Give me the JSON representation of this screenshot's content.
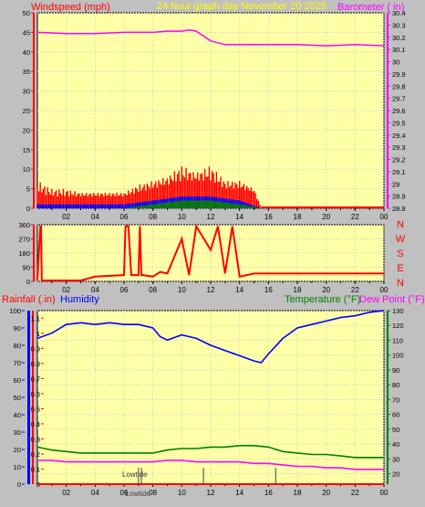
{
  "header": {
    "title": "24 hour graph day   November 20 2025",
    "left_label": "Windspeed (mph)",
    "right_label": "Barometer ( in)"
  },
  "direction_panel": {
    "compass_labels": [
      "N",
      "W",
      "S",
      "E",
      "N"
    ]
  },
  "bottom_header": {
    "rainfall_label": "Rainfall (.in)",
    "humidity_label": "Humidity",
    "temperature_label": "Temperature (°F)",
    "dewpoint_label": "Dew Point (°F)"
  },
  "colors": {
    "plot_bg": "#ffffa8",
    "wind_gust": "#ff0000",
    "wind_avg": "#0000ff",
    "wind_low": "#008000",
    "barometer": "#ff00ff",
    "humidity": "#0000ff",
    "temperature": "#008000",
    "dewpoint": "#ff00ff",
    "direction": "#ff0000",
    "rain": "#ff0000"
  },
  "chart_data": [
    {
      "type": "line",
      "x_ticks": [
        "02",
        "04",
        "06",
        "08",
        "10",
        "12",
        "14",
        "16",
        "18",
        "20",
        "22",
        "00"
      ],
      "y_left_ticks": [
        "0",
        "5",
        "10",
        "15",
        "20",
        "25",
        "30",
        "35",
        "40",
        "45",
        "50"
      ],
      "y_left_lim": [
        0,
        50
      ],
      "y_right_ticks": [
        "28.8",
        "28.9",
        "29",
        "29.1",
        "29.2",
        "29.3",
        "29.4",
        "29.5",
        "29.6",
        "29.7",
        "29.8",
        "29.9",
        "30",
        "30.1",
        "30.2",
        "30.3",
        "30.4"
      ],
      "y_right_lim": [
        28.8,
        30.4
      ],
      "series": [
        {
          "name": "Barometer",
          "hours": [
            0,
            2,
            4,
            6,
            8,
            9,
            10,
            10.5,
            11,
            12,
            13,
            14,
            15,
            16,
            18,
            20,
            22,
            24
          ],
          "values": [
            30.24,
            30.23,
            30.23,
            30.24,
            30.24,
            30.25,
            30.25,
            30.26,
            30.25,
            30.17,
            30.14,
            30.14,
            30.14,
            30.14,
            30.14,
            30.13,
            30.14,
            30.13
          ]
        },
        {
          "name": "Windspeed gust",
          "hours": [
            0,
            1,
            2,
            3,
            4,
            5,
            6,
            7,
            8,
            9,
            10,
            11,
            12,
            13,
            14,
            15,
            15.5,
            16,
            18,
            20,
            22,
            24
          ],
          "values": [
            4,
            3,
            3,
            3,
            3,
            3,
            3,
            4,
            5,
            6,
            7,
            7,
            7,
            5,
            5,
            4,
            0,
            0,
            0,
            0,
            0,
            0
          ],
          "max_values": [
            7,
            5,
            5,
            4,
            4,
            4,
            4,
            6,
            7,
            8,
            11,
            9,
            11,
            7,
            7,
            5,
            0,
            0,
            0,
            0,
            0,
            0
          ]
        },
        {
          "name": "Windspeed average",
          "hours": [
            0,
            2,
            4,
            6,
            8,
            10,
            12,
            14,
            15.5,
            16,
            24
          ],
          "values": [
            1,
            1,
            1,
            1,
            2,
            3,
            3,
            2,
            0,
            0,
            0
          ]
        },
        {
          "name": "Windspeed low",
          "hours": [
            0,
            2,
            4,
            6,
            8,
            10,
            12,
            14,
            15.5,
            16,
            24
          ],
          "values": [
            0,
            0,
            0,
            0,
            1,
            2,
            2,
            1,
            0,
            0,
            0
          ]
        }
      ]
    },
    {
      "type": "line",
      "x_ticks": [
        "02",
        "04",
        "06",
        "08",
        "10",
        "12",
        "14",
        "16",
        "18",
        "20",
        "22",
        "00"
      ],
      "y_ticks": [
        "0",
        "90",
        "180",
        "270",
        "360"
      ],
      "ylim": [
        0,
        360
      ],
      "series": [
        {
          "name": "Wind direction",
          "hours": [
            0,
            0.2,
            0.25,
            0.3,
            0.5,
            3,
            4,
            6,
            6.1,
            6.3,
            6.5,
            7,
            7.1,
            7.2,
            7.3,
            8,
            8.5,
            9,
            10,
            10.5,
            11,
            12,
            12.5,
            13,
            13.5,
            14,
            15,
            15.5,
            16,
            18,
            20,
            22,
            24
          ],
          "values": [
            5,
            350,
            350,
            5,
            5,
            5,
            30,
            40,
            350,
            350,
            40,
            40,
            350,
            40,
            40,
            30,
            60,
            50,
            270,
            40,
            350,
            200,
            350,
            50,
            350,
            30,
            50,
            50,
            50,
            50,
            50,
            50,
            50
          ]
        }
      ]
    },
    {
      "type": "line",
      "x_ticks": [
        "02",
        "04",
        "06",
        "08",
        "10",
        "12",
        "14",
        "16",
        "18",
        "20",
        "22",
        "00"
      ],
      "y_rain_ticks": [
        "0",
        "0.1",
        "0.2",
        "0.3",
        "0.4",
        "0.5",
        "0.6",
        "0.7",
        "0.8",
        "0.9",
        "1",
        "1.1"
      ],
      "y_rain_lim": [
        0,
        1.15
      ],
      "y_humidity_ticks": [
        "0",
        "10",
        "20",
        "30",
        "40",
        "50",
        "60",
        "70",
        "80",
        "90",
        "100"
      ],
      "y_humidity_lim": [
        0,
        100
      ],
      "y_temp_ticks": [
        "20",
        "30",
        "40",
        "50",
        "60",
        "70",
        "80",
        "90",
        "100",
        "110",
        "120",
        "130"
      ],
      "y_temp_lim": [
        13,
        130
      ],
      "annotations": [
        {
          "label": "Lowtide",
          "hour": 7
        },
        {
          "label": "Lowtide",
          "hour": 7.2
        },
        {
          "label": "",
          "hour": 11.5
        },
        {
          "label": "",
          "hour": 16.5
        }
      ],
      "series": [
        {
          "name": "Humidity",
          "hours": [
            0,
            1,
            2,
            3,
            4,
            5,
            6,
            7,
            8,
            8.5,
            9,
            10,
            11,
            12,
            13,
            14,
            15,
            15.5,
            16,
            17,
            18,
            19,
            20,
            21,
            22,
            23,
            24
          ],
          "values": [
            84,
            87,
            92,
            93,
            92,
            93,
            92,
            92,
            90,
            85,
            83,
            86,
            84,
            80,
            77,
            74,
            71,
            70,
            75,
            84,
            90,
            92,
            94,
            96,
            97,
            99,
            100
          ]
        },
        {
          "name": "Temperature",
          "hours": [
            0,
            1,
            2,
            3,
            4,
            5,
            6,
            7,
            8,
            9,
            10,
            11,
            12,
            13,
            14,
            15,
            16,
            17,
            18,
            19,
            20,
            21,
            22,
            23,
            24
          ],
          "values": [
            38,
            36,
            35,
            34,
            34,
            34,
            34,
            34,
            34,
            36,
            37,
            37,
            38,
            38,
            39,
            39,
            38,
            35,
            34,
            33,
            33,
            32,
            31,
            31,
            31
          ]
        },
        {
          "name": "Dew Point",
          "hours": [
            0,
            1,
            2,
            3,
            4,
            5,
            6,
            7,
            8,
            9,
            10,
            11,
            12,
            13,
            14,
            15,
            16,
            17,
            18,
            19,
            20,
            21,
            22,
            23,
            24
          ],
          "values": [
            29,
            29,
            28,
            28,
            28,
            28,
            28,
            28,
            28,
            29,
            29,
            28,
            28,
            28,
            28,
            27,
            27,
            26,
            25,
            25,
            24,
            24,
            23,
            23,
            23
          ]
        },
        {
          "name": "Rainfall",
          "hours": [
            0,
            24
          ],
          "values": [
            0,
            0
          ]
        }
      ]
    }
  ]
}
